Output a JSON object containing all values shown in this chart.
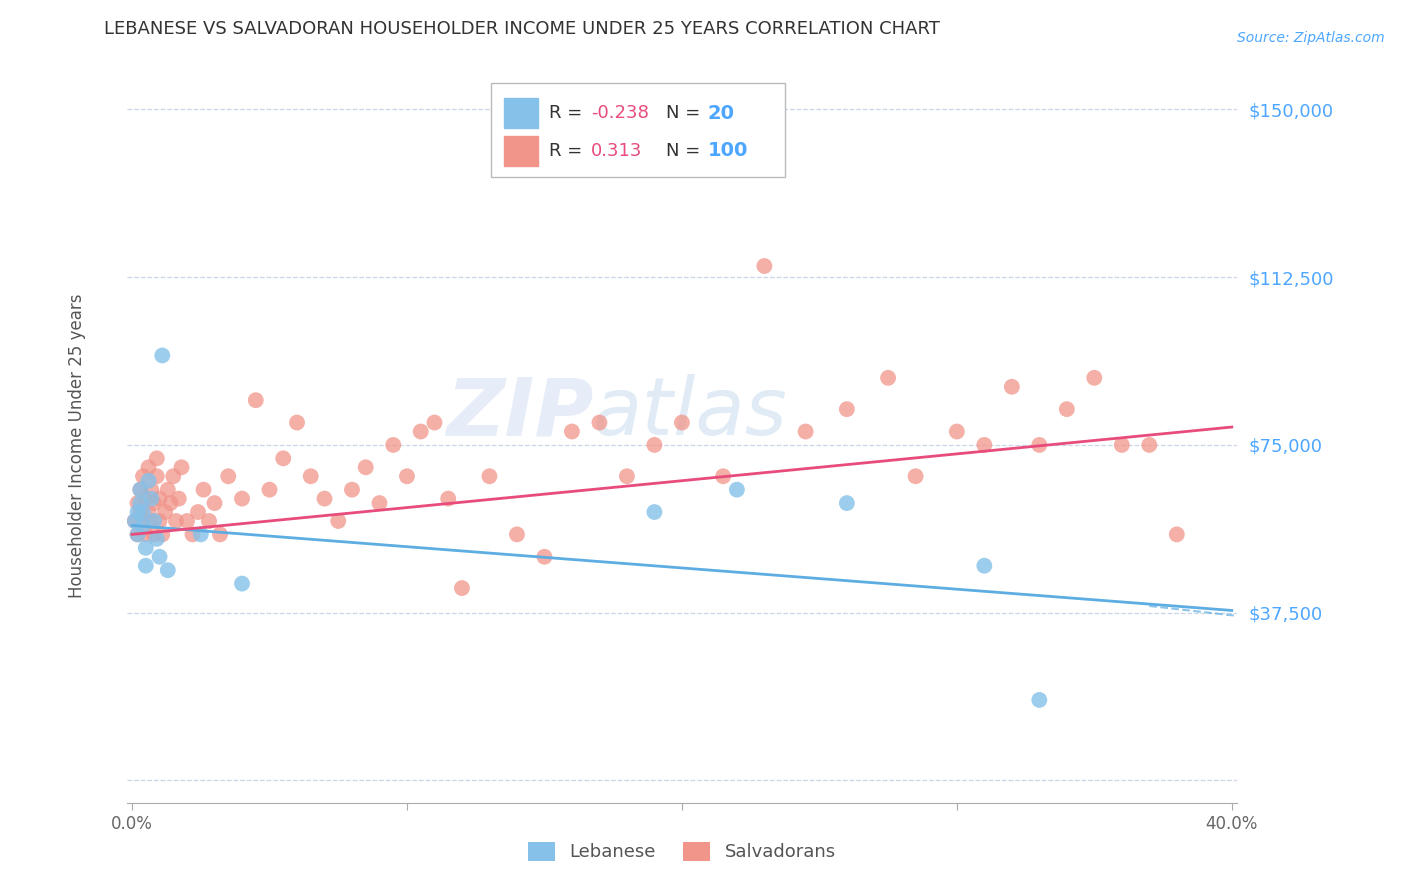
{
  "title": "LEBANESE VS SALVADORAN HOUSEHOLDER INCOME UNDER 25 YEARS CORRELATION CHART",
  "source": "Source: ZipAtlas.com",
  "ylabel": "Householder Income Under 25 years",
  "xlim": [
    -0.002,
    0.402
  ],
  "ylim": [
    -5000,
    162500
  ],
  "yticks": [
    0,
    37500,
    75000,
    112500,
    150000
  ],
  "ytick_labels": [
    "",
    "$37,500",
    "$75,000",
    "$112,500",
    "$150,000"
  ],
  "xtick_positions": [
    0.0,
    0.1,
    0.2,
    0.3,
    0.4
  ],
  "xtick_labels": [
    "0.0%",
    "",
    "",
    "",
    "40.0%"
  ],
  "color_lebanese": "#85c1e9",
  "color_salvadoran": "#f1948a",
  "color_line_lebanese": "#5dade2",
  "color_line_salvadoran": "#e74c7c",
  "color_ytick_labels": "#4da6ff",
  "color_title": "#333333",
  "background_color": "#ffffff",
  "grid_color": "#c8d6e8",
  "lebanese_x": [
    0.001,
    0.002,
    0.002,
    0.003,
    0.003,
    0.004,
    0.004,
    0.005,
    0.005,
    0.006,
    0.007,
    0.008,
    0.009,
    0.01,
    0.011,
    0.013,
    0.025,
    0.04,
    0.19,
    0.22,
    0.26,
    0.31,
    0.33
  ],
  "lebanese_y": [
    58000,
    60000,
    55000,
    65000,
    62000,
    60000,
    57000,
    52000,
    48000,
    67000,
    63000,
    58000,
    54000,
    50000,
    95000,
    47000,
    55000,
    44000,
    60000,
    65000,
    62000,
    48000,
    18000
  ],
  "salvadoran_x": [
    0.001,
    0.002,
    0.002,
    0.003,
    0.003,
    0.004,
    0.004,
    0.005,
    0.005,
    0.006,
    0.006,
    0.007,
    0.007,
    0.008,
    0.008,
    0.009,
    0.009,
    0.01,
    0.01,
    0.011,
    0.012,
    0.013,
    0.014,
    0.015,
    0.016,
    0.017,
    0.018,
    0.02,
    0.022,
    0.024,
    0.026,
    0.028,
    0.03,
    0.032,
    0.035,
    0.04,
    0.045,
    0.05,
    0.055,
    0.06,
    0.065,
    0.07,
    0.075,
    0.08,
    0.085,
    0.09,
    0.095,
    0.1,
    0.105,
    0.11,
    0.115,
    0.12,
    0.13,
    0.14,
    0.15,
    0.16,
    0.17,
    0.18,
    0.19,
    0.2,
    0.215,
    0.23,
    0.245,
    0.26,
    0.275,
    0.285,
    0.3,
    0.31,
    0.32,
    0.33,
    0.34,
    0.35,
    0.36,
    0.37,
    0.38
  ],
  "salvadoran_y": [
    58000,
    62000,
    55000,
    60000,
    65000,
    58000,
    68000,
    63000,
    55000,
    70000,
    60000,
    65000,
    58000,
    62000,
    55000,
    68000,
    72000,
    63000,
    58000,
    55000,
    60000,
    65000,
    62000,
    68000,
    58000,
    63000,
    70000,
    58000,
    55000,
    60000,
    65000,
    58000,
    62000,
    55000,
    68000,
    63000,
    85000,
    65000,
    72000,
    80000,
    68000,
    63000,
    58000,
    65000,
    70000,
    62000,
    75000,
    68000,
    78000,
    80000,
    63000,
    43000,
    68000,
    55000,
    50000,
    78000,
    80000,
    68000,
    75000,
    80000,
    68000,
    115000,
    78000,
    83000,
    90000,
    68000,
    78000,
    75000,
    88000,
    75000,
    83000,
    90000,
    75000,
    75000,
    55000
  ],
  "watermark": "ZIPatlas",
  "leb_trend": [
    0.0,
    0.4,
    57000,
    38000
  ],
  "sal_trend": [
    0.0,
    0.4,
    55000,
    79000
  ],
  "leb_trend_ext": [
    0.37,
    0.5,
    39000,
    30000
  ]
}
